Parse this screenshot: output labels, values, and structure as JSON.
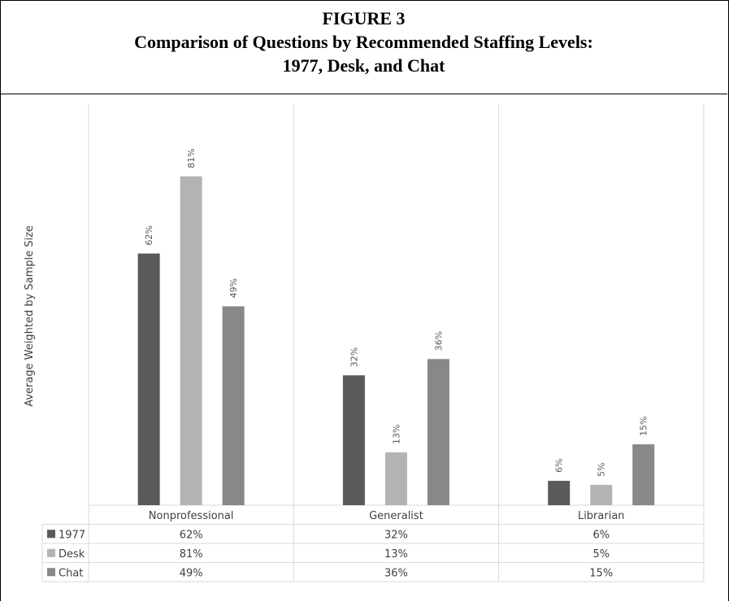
{
  "figure": {
    "label": "FIGURE 3",
    "title_line1": "Comparison of Questions by Recommended Staffing Levels:",
    "title_line2": "1977, Desk, and Chat"
  },
  "chart_data": {
    "type": "bar",
    "ylabel": "Average Weighted by Sample Size",
    "categories": [
      "Nonprofessional",
      "Generalist",
      "Librarian"
    ],
    "series": [
      {
        "name": "1977",
        "values": [
          62,
          32,
          6
        ],
        "labels": [
          "62%",
          "32%",
          "6%"
        ],
        "color": "#5a5a5a"
      },
      {
        "name": "Desk",
        "values": [
          81,
          13,
          5
        ],
        "labels": [
          "81%",
          "13%",
          "5%"
        ],
        "color": "#b3b3b3"
      },
      {
        "name": "Chat",
        "values": [
          49,
          36,
          15
        ],
        "labels": [
          "49%",
          "36%",
          "15%"
        ],
        "color": "#888888"
      }
    ],
    "ylim": [
      0,
      100
    ],
    "grid": false,
    "legend": "data-table"
  }
}
